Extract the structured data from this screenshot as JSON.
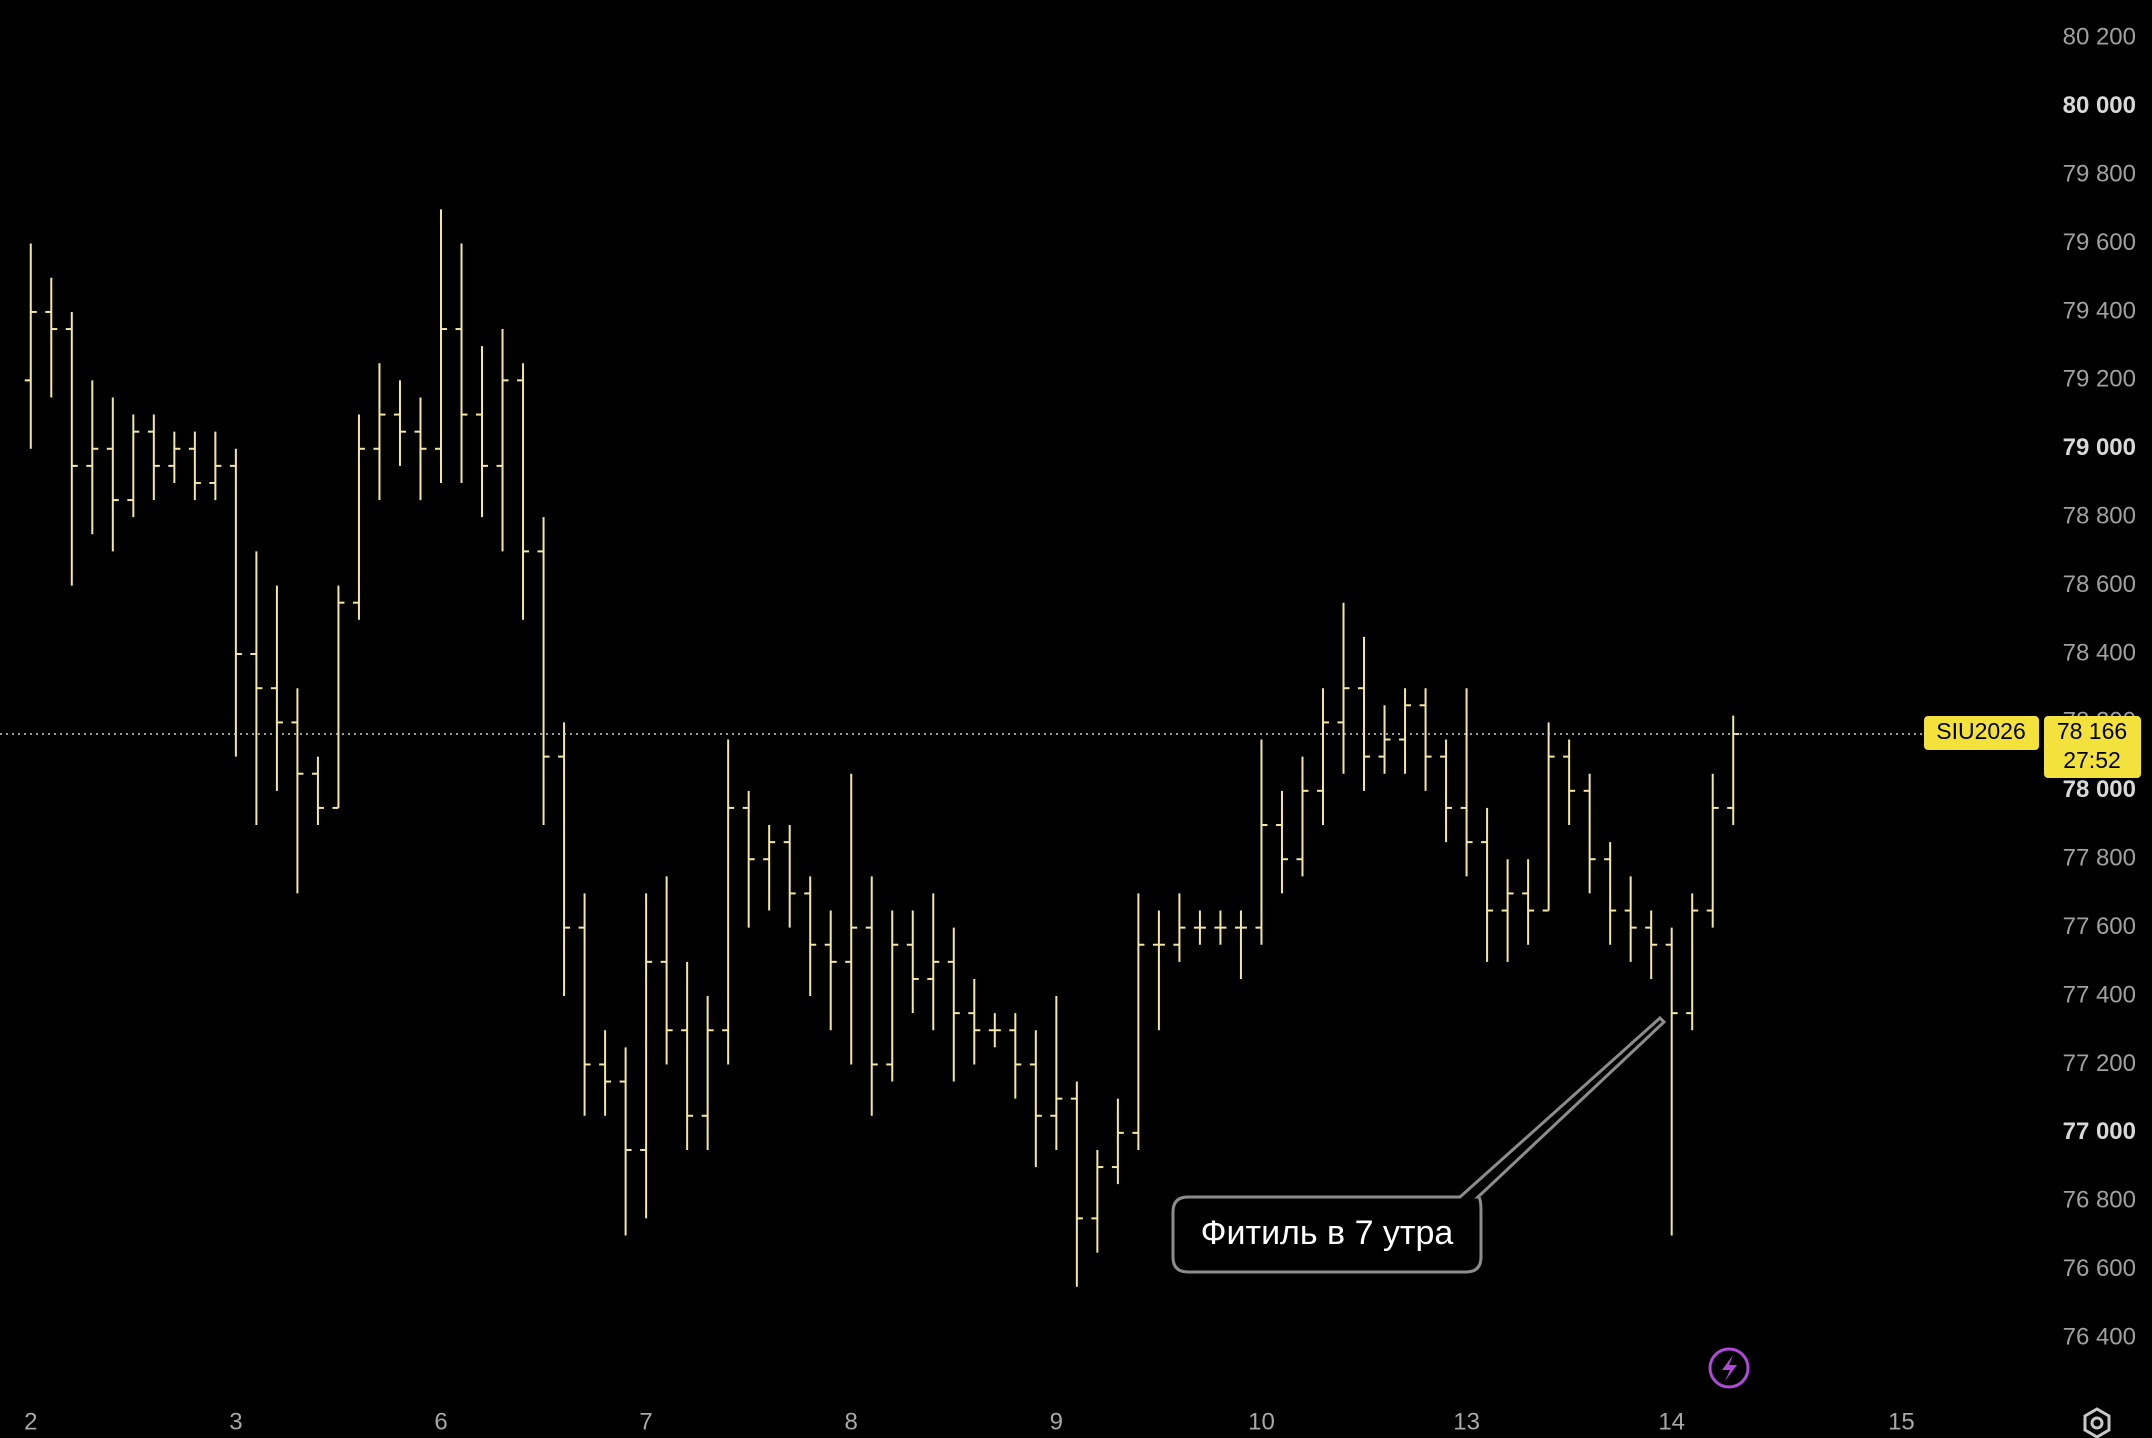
{
  "chart_data": {
    "type": "ohlc",
    "color": "#f3e6a2",
    "x": [
      0,
      0.1,
      0.2,
      0.3,
      0.4,
      0.5,
      0.6,
      0.7,
      0.8,
      0.9,
      1,
      1.1,
      1.2,
      1.3,
      1.4,
      1.5,
      1.6,
      1.7,
      1.8,
      1.9,
      2,
      2.1,
      2.2,
      2.3,
      2.4,
      2.5,
      2.6,
      2.7,
      2.8,
      2.9,
      3,
      3.1,
      3.2,
      3.3,
      3.4,
      3.5,
      3.6,
      3.7,
      3.8,
      3.9,
      4,
      4.1,
      4.2,
      4.3,
      4.4,
      4.5,
      4.6,
      4.7,
      4.8,
      4.9,
      5,
      5.1,
      5.2,
      5.3,
      5.4,
      5.5,
      5.6,
      5.7,
      5.8,
      5.9,
      6,
      6.1,
      6.2,
      6.3,
      6.4,
      6.5,
      6.6,
      6.7,
      6.8,
      6.9,
      7,
      7.1,
      7.2,
      7.3,
      7.4,
      7.5,
      7.6,
      7.7,
      7.8,
      7.9,
      8,
      8.1,
      8.2,
      8.3
    ],
    "open": [
      79200,
      79400,
      79350,
      78950,
      79000,
      78850,
      79050,
      78950,
      79000,
      78900,
      78950,
      78400,
      78300,
      78200,
      78050,
      77950,
      78550,
      79000,
      79100,
      79050,
      79000,
      79350,
      79100,
      78950,
      79200,
      78700,
      78100,
      77600,
      77200,
      77150,
      76950,
      77500,
      77300,
      77050,
      77300,
      77950,
      77800,
      77850,
      77700,
      77550,
      77500,
      77600,
      77200,
      77550,
      77450,
      77500,
      77350,
      77300,
      77300,
      77200,
      77050,
      77100,
      76750,
      76900,
      77000,
      77550,
      77550,
      77600,
      77600,
      77600,
      77600,
      77900,
      77800,
      78000,
      78200,
      78300,
      78100,
      78150,
      78250,
      78100,
      77950,
      77850,
      77650,
      77700,
      77650,
      78100,
      78000,
      77800,
      77650,
      77600,
      77550,
      77350,
      77650,
      77950
    ],
    "high": [
      79600,
      79500,
      79400,
      79200,
      79150,
      79100,
      79100,
      79050,
      79050,
      79050,
      79000,
      78700,
      78600,
      78300,
      78100,
      78600,
      79100,
      79250,
      79200,
      79150,
      79700,
      79600,
      79300,
      79350,
      79250,
      78800,
      78200,
      77700,
      77300,
      77250,
      77700,
      77750,
      77500,
      77400,
      78150,
      78000,
      77900,
      77900,
      77750,
      77650,
      78050,
      77750,
      77650,
      77650,
      77700,
      77600,
      77450,
      77350,
      77350,
      77300,
      77400,
      77150,
      76950,
      77100,
      77700,
      77650,
      77700,
      77650,
      77650,
      77650,
      78150,
      78000,
      78100,
      78300,
      78550,
      78450,
      78250,
      78300,
      78300,
      78150,
      78300,
      77950,
      77800,
      77800,
      78200,
      78150,
      78050,
      77850,
      77750,
      77650,
      77600,
      77700,
      78050,
      78220
    ],
    "low": [
      79000,
      79150,
      78600,
      78750,
      78700,
      78800,
      78850,
      78900,
      78850,
      78850,
      78100,
      77900,
      78000,
      77700,
      77900,
      77950,
      78500,
      78850,
      78950,
      78850,
      78900,
      78900,
      78800,
      78700,
      78500,
      77900,
      77400,
      77050,
      77050,
      76700,
      76750,
      77200,
      76950,
      76950,
      77200,
      77600,
      77650,
      77600,
      77400,
      77300,
      77200,
      77050,
      77150,
      77350,
      77300,
      77150,
      77200,
      77250,
      77100,
      76900,
      76950,
      76550,
      76650,
      76850,
      76950,
      77300,
      77500,
      77550,
      77550,
      77450,
      77550,
      77700,
      77750,
      77900,
      78050,
      78000,
      78050,
      78050,
      78000,
      77850,
      77750,
      77500,
      77500,
      77550,
      77650,
      77900,
      77700,
      77550,
      77500,
      77450,
      76700,
      77300,
      77600,
      77900
    ],
    "close": [
      79400,
      79350,
      78950,
      79000,
      78850,
      79050,
      78950,
      79000,
      78900,
      78950,
      78400,
      78300,
      78200,
      78050,
      77950,
      78550,
      79000,
      79100,
      79050,
      79000,
      79350,
      79100,
      78950,
      79200,
      78700,
      78100,
      77600,
      77200,
      77150,
      76950,
      77500,
      77300,
      77050,
      77300,
      77950,
      77800,
      77850,
      77700,
      77550,
      77500,
      77600,
      77200,
      77550,
      77450,
      77500,
      77350,
      77300,
      77300,
      77200,
      77050,
      77100,
      76750,
      76900,
      77000,
      77550,
      77550,
      77600,
      77600,
      77600,
      77600,
      77900,
      77800,
      78000,
      78200,
      78300,
      78100,
      78150,
      78250,
      78100,
      77950,
      77850,
      77650,
      77700,
      77650,
      78100,
      78000,
      77800,
      77650,
      77600,
      77550,
      77350,
      77650,
      77950,
      78166
    ],
    "xlim": [
      -0.15,
      9.82
    ],
    "xticks": [
      {
        "value": 0,
        "label": "2"
      },
      {
        "value": 1,
        "label": "3"
      },
      {
        "value": 2,
        "label": "6"
      },
      {
        "value": 3,
        "label": "7"
      },
      {
        "value": 4,
        "label": "8"
      },
      {
        "value": 5,
        "label": "9"
      },
      {
        "value": 6,
        "label": "10"
      },
      {
        "value": 7,
        "label": "13"
      },
      {
        "value": 8,
        "label": "14"
      },
      {
        "value": 9.12,
        "label": "15"
      }
    ],
    "ylim": [
      76219,
      80312
    ],
    "yticks": [
      {
        "value": 76400,
        "label": "76 400"
      },
      {
        "value": 76600,
        "label": "76 600"
      },
      {
        "value": 76800,
        "label": "76 800"
      },
      {
        "value": 77000,
        "label": "77 000"
      },
      {
        "value": 77200,
        "label": "77 200"
      },
      {
        "value": 77400,
        "label": "77 400"
      },
      {
        "value": 77600,
        "label": "77 600"
      },
      {
        "value": 77800,
        "label": "77 800"
      },
      {
        "value": 78000,
        "label": "78 000"
      },
      {
        "value": 78200,
        "label": "78 200"
      },
      {
        "value": 78400,
        "label": "78 400"
      },
      {
        "value": 78600,
        "label": "78 600"
      },
      {
        "value": 78800,
        "label": "78 800"
      },
      {
        "value": 79000,
        "label": "79 000"
      },
      {
        "value": 79200,
        "label": "79 200"
      },
      {
        "value": 79400,
        "label": "79 400"
      },
      {
        "value": 79600,
        "label": "79 600"
      },
      {
        "value": 79800,
        "label": "79 800"
      },
      {
        "value": 80000,
        "label": "80 000"
      },
      {
        "value": 80200,
        "label": "80 200"
      }
    ],
    "symbol": "SIU2026",
    "last_price": {
      "value": 78166,
      "label": "78 166"
    },
    "timer": "27:52",
    "annotation": "Фитиль в 7 утра"
  }
}
